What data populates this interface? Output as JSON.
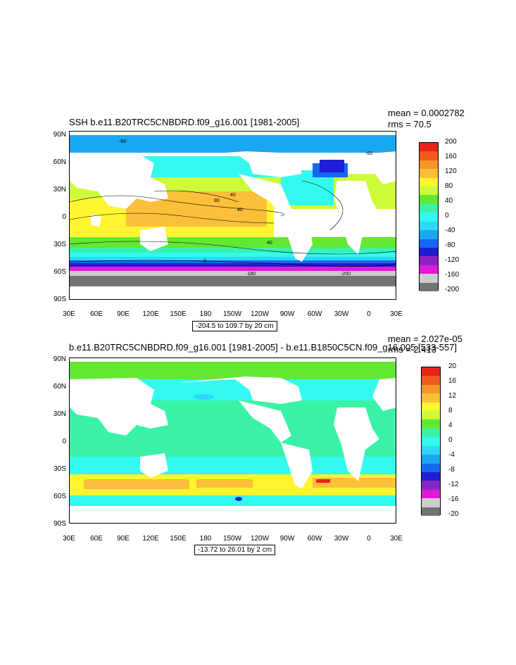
{
  "top": {
    "title": "SSH b.e11.B20TRC5CNBDRD.f09_g16.001 [1981-2005]",
    "mean": "mean = 0.0002782",
    "rms": "rms = 70.5",
    "range": "-204.5 to 109.7 by 20 cm",
    "colorbar": [
      "200",
      "160",
      "120",
      "80",
      "40",
      "0",
      "-40",
      "-80",
      "-120",
      "-160",
      "-200"
    ],
    "colors": [
      "#e8231b",
      "#f25a1e",
      "#f7962b",
      "#fbbf3a",
      "#fef430",
      "#cdfb3a",
      "#62e831",
      "#3af2a7",
      "#33f9ee",
      "#2cd7f5",
      "#1aa7f2",
      "#1569f0",
      "#1e1dd4",
      "#8a24c6",
      "#e119d8",
      "#cccccc",
      "#737373"
    ],
    "contours": [
      "-60",
      "-60",
      "40",
      "80",
      "40",
      "0",
      "40",
      "-180",
      "-200"
    ]
  },
  "bottom": {
    "title": "b.e11.B20TRC5CNBDRD.f09_g16.001 [1981-2005] - b.e11.B1850C5CN.f09_g16.005 [533-557]",
    "mean": "mean = 2.027e-05",
    "rms": "rms = 2.413",
    "range": "-13.72 to 26.01 by 2 cm",
    "colorbar": [
      "20",
      "16",
      "12",
      "8",
      "4",
      "0",
      "-4",
      "-8",
      "-12",
      "-16",
      "-20"
    ]
  },
  "axes": {
    "lat": [
      "90N",
      "60N",
      "30N",
      "0",
      "30S",
      "60S",
      "90S"
    ],
    "lon": [
      "30E",
      "60E",
      "90E",
      "120E",
      "150E",
      "180",
      "150W",
      "120W",
      "90W",
      "60W",
      "30W",
      "0",
      "30E"
    ]
  }
}
